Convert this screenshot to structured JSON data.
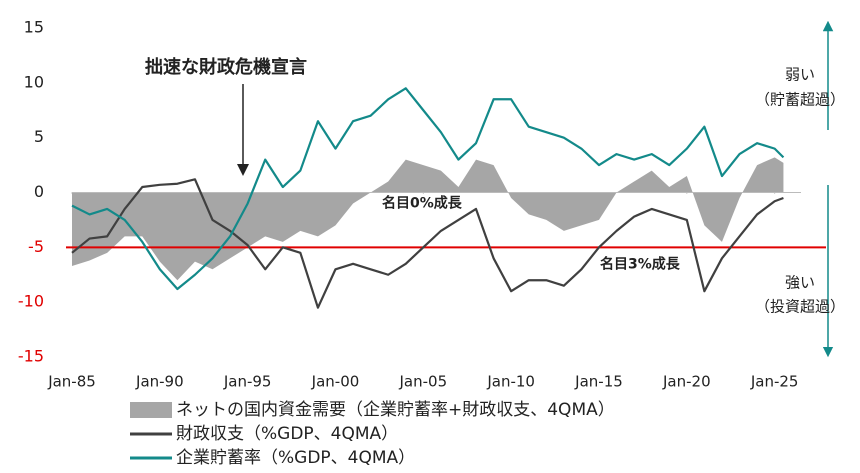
{
  "chart_data": {
    "type": "line",
    "annotation": "拙速な財政危機宣言",
    "reference_line": {
      "value": -5,
      "color": "#e00000",
      "label": "名目3%成長"
    },
    "zero_label": "名目0%成長",
    "right_labels": {
      "up": "弱い",
      "up_note": "（貯蓄超過）",
      "down": "強い",
      "down_note": "（投資超過）",
      "color": "#138a8a"
    },
    "negative_tick_color": "#e00000",
    "xlim": [
      1985,
      2026.5
    ],
    "xticks": [
      {
        "value": 1985,
        "label": "Jan-85"
      },
      {
        "value": 1990,
        "label": "Jan-90"
      },
      {
        "value": 1995,
        "label": "Jan-95"
      },
      {
        "value": 2000,
        "label": "Jan-00"
      },
      {
        "value": 2005,
        "label": "Jan-05"
      },
      {
        "value": 2010,
        "label": "Jan-10"
      },
      {
        "value": 2015,
        "label": "Jan-15"
      },
      {
        "value": 2020,
        "label": "Jan-20"
      },
      {
        "value": 2025,
        "label": "Jan-25"
      }
    ],
    "ylim": [
      -15,
      15
    ],
    "yticks": [
      -15,
      -10,
      -5,
      0,
      5,
      10,
      15
    ],
    "x": [
      1985,
      1986,
      1987,
      1988,
      1989,
      1990,
      1991,
      1992,
      1993,
      1994,
      1995,
      1996,
      1997,
      1998,
      1999,
      2000,
      2001,
      2002,
      2003,
      2004,
      2005,
      2006,
      2007,
      2008,
      2009,
      2010,
      2011,
      2012,
      2013,
      2014,
      2015,
      2016,
      2017,
      2018,
      2019,
      2020,
      2021,
      2022,
      2023,
      2024,
      2025,
      2025.5
    ],
    "series": [
      {
        "name": "ネットの国内資金需要（企業貯蓄率+財政収支、4QMA）",
        "kind": "area",
        "color": "#a6a6a6",
        "values": [
          -6.7,
          -6.2,
          -5.5,
          -4,
          -4,
          -6.3,
          -8,
          -6.3,
          -7,
          -6,
          -5,
          -4,
          -4.5,
          -3.5,
          -4,
          -3,
          -1,
          0,
          1,
          3,
          2.5,
          2,
          0.5,
          3,
          2.5,
          -0.5,
          -2,
          -2.5,
          -3.5,
          -3,
          -2.5,
          0,
          1,
          2,
          0.5,
          1.5,
          -3,
          -4.5,
          -0.5,
          2.5,
          3.2,
          2.7
        ]
      },
      {
        "name": "財政収支（%GDP、4QMA）",
        "kind": "line",
        "color": "#404040",
        "values": [
          -5.5,
          -4.2,
          -4,
          -1.5,
          0.5,
          0.7,
          0.8,
          1.2,
          -2.5,
          -3.5,
          -4.8,
          -7,
          -5,
          -5.5,
          -10.5,
          -7,
          -6.5,
          -7,
          -7.5,
          -6.5,
          -5,
          -3.5,
          -2.5,
          -1.5,
          -6,
          -9,
          -8,
          -8,
          -8.5,
          -7,
          -5,
          -3.5,
          -2.2,
          -1.5,
          -2,
          -2.5,
          -9,
          -6,
          -4,
          -2,
          -0.8,
          -0.5
        ]
      },
      {
        "name": "企業貯蓄率（%GDP、4QMA）",
        "kind": "line",
        "color": "#138a8a",
        "values": [
          -1.2,
          -2,
          -1.5,
          -2.5,
          -4.5,
          -7,
          -8.8,
          -7.5,
          -6,
          -4,
          -1,
          3,
          0.5,
          2,
          6.5,
          4,
          6.5,
          7,
          8.5,
          9.5,
          7.5,
          5.5,
          3,
          4.5,
          8.5,
          8.5,
          6,
          5.5,
          5,
          4,
          2.5,
          3.5,
          3,
          3.5,
          2.5,
          4,
          6,
          1.5,
          3.5,
          4.5,
          4,
          3.2
        ]
      }
    ]
  }
}
